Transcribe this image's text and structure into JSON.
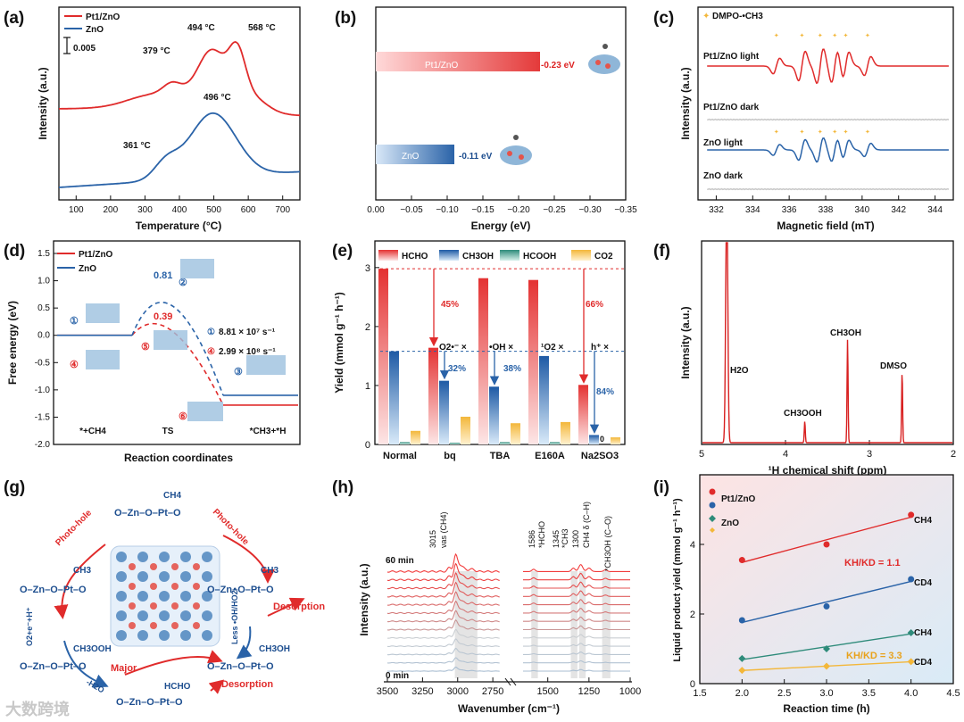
{
  "colors": {
    "pt": "#e02b2b",
    "zno": "#2a63a8",
    "teal": "#2e8b7a",
    "yellow": "#f3b73a",
    "gray": "#c9c9c9"
  },
  "watermark": "大数跨境",
  "panels": {
    "a": {
      "label": "(a)",
      "xlabel": "Temperature (°C)",
      "ylabel": "Intensity (a.u.)",
      "legend": [
        "Pt1/ZnO",
        "ZnO"
      ],
      "scalebar": "0.005",
      "annotations": [
        "379 °C",
        "494 °C",
        "568 °C",
        "361 °C",
        "496 °C"
      ]
    },
    "b": {
      "label": "(b)",
      "xlabel": "Energy (eV)",
      "bar_labels": [
        "Pt1/ZnO",
        "ZnO"
      ],
      "value_labels": [
        "-0.23 eV",
        "-0.11 eV"
      ]
    },
    "c": {
      "label": "(c)",
      "xlabel": "Magnetic field (mT)",
      "ylabel": "Intensity (a.u.)",
      "legend": "DMPO-•CH3",
      "trace_labels": [
        "Pt1/ZnO light",
        "Pt1/ZnO dark",
        "ZnO light",
        "ZnO dark"
      ]
    },
    "d": {
      "label": "(d)",
      "xlabel": "Reaction coordinates",
      "ylabel": "Free energy (eV)",
      "legend": [
        "Pt1/ZnO",
        "ZnO"
      ],
      "stage_labels": [
        "*+CH4",
        "TS",
        "*CH3+*H"
      ],
      "ts_labels": [
        "0.81",
        "0.39"
      ],
      "rates": [
        "8.81 × 10⁷ s⁻¹",
        "2.99 × 10⁸ s⁻¹"
      ],
      "markers": [
        "①",
        "②",
        "③",
        "④",
        "⑤",
        "⑥"
      ]
    },
    "e": {
      "label": "(e)",
      "ylabel": "Yield (mmol g⁻¹ h⁻¹)",
      "legend": [
        "HCHO",
        "CH3OH",
        "HCOOH",
        "CO2"
      ],
      "percent_labels": [
        "45%",
        "66%",
        "32%",
        "38%",
        "84%"
      ],
      "scavenger_labels": [
        "O2•⁻ ×",
        "•OH ×",
        "¹O2 ×",
        "h⁺ ×"
      ],
      "zero_label": "0"
    },
    "f": {
      "label": "(f)",
      "xlabel": "¹H chemical shift (ppm)",
      "ylabel": "Intensity (a.u.)",
      "peak_labels": [
        "H2O",
        "CH3OOH",
        "CH3OH",
        "DMSO"
      ]
    },
    "g": {
      "label": "(g)",
      "nodes": [
        "O–Zn–O–Pt–O",
        "O–Zn–O–Pt–O",
        "O–Zn–O–Pt–O",
        "O–Zn–O–Pt–O",
        "O–Zn–O–Pt–O",
        "O–Zn–O–Pt–O"
      ],
      "groups": [
        "CH4",
        "CH3",
        "CH3",
        "CH3OOH",
        "CH3OH",
        "HCHO"
      ],
      "arrow_labels": [
        "Photo-hole",
        "Photo-hole",
        "O2+e⁻+H⁺",
        "Less •OH/HO2•",
        "Desorption",
        "Desorption",
        "Major",
        "-H2O"
      ]
    },
    "h": {
      "label": "(h)",
      "xlabel": "Wavenumber (cm⁻¹)",
      "ylabel": "Intensity (a.u.)",
      "time_labels": [
        "60 min",
        "0 min"
      ],
      "band_labels": [
        "3015",
        "νas (CH4)",
        "1586",
        "*HCHO",
        "1345",
        "*CH3",
        "1300",
        "CH4 δ (C–H)",
        "*CH3OH (C–O)"
      ]
    },
    "i": {
      "label": "(i)",
      "xlabel": "Reaction time (h)",
      "ylabel": "Liquid product yield (mmol g⁻¹ h⁻¹)",
      "legend": [
        "Pt1/ZnO",
        "ZnO"
      ],
      "line_labels": [
        "CH4",
        "CD4",
        "CH4",
        "CD4"
      ],
      "kie_labels": [
        "KH/KD = 1.1",
        "KH/KD = 3.3"
      ]
    }
  },
  "chart_data": [
    {
      "panel": "a",
      "type": "line",
      "xlabel": "Temperature (°C)",
      "ylabel": "Intensity (a.u.)",
      "xlim": [
        50,
        750
      ],
      "series": [
        {
          "name": "Pt1/ZnO",
          "peaks": [
            379,
            494,
            568
          ]
        },
        {
          "name": "ZnO",
          "peaks": [
            361,
            496
          ]
        }
      ],
      "xticks": [
        100,
        200,
        300,
        400,
        500,
        600,
        700
      ]
    },
    {
      "panel": "b",
      "type": "bar",
      "xlabel": "Energy (eV)",
      "categories": [
        "Pt1/ZnO",
        "ZnO"
      ],
      "values": [
        -0.23,
        -0.11
      ],
      "xlim": [
        0,
        -0.35
      ],
      "xticks": [
        "0.00",
        "−0.05",
        "−0.10",
        "−0.15",
        "−0.20",
        "−0.25",
        "−0.30",
        "−0.35"
      ]
    },
    {
      "panel": "c",
      "type": "line",
      "xlabel": "Magnetic field (mT)",
      "xlim": [
        331,
        345
      ],
      "xticks": [
        332,
        334,
        336,
        338,
        340,
        342,
        344
      ],
      "series": [
        {
          "name": "Pt1/ZnO light",
          "lines_mT": [
            335.3,
            336.7,
            337.7,
            338.5,
            339.1,
            340.3
          ]
        },
        {
          "name": "Pt1/ZnO dark",
          "lines_mT": []
        },
        {
          "name": "ZnO light",
          "lines_mT": [
            335.3,
            336.7,
            337.7,
            338.5,
            339.1,
            340.3
          ]
        },
        {
          "name": "ZnO dark",
          "lines_mT": []
        }
      ]
    },
    {
      "panel": "d",
      "type": "line",
      "xlabel": "Reaction coordinates",
      "ylabel": "Free energy (eV)",
      "ylim": [
        -2.0,
        1.5
      ],
      "yticks": [
        1.5,
        1.0,
        0.5,
        0.0,
        -0.5,
        -1.0,
        -1.5,
        -2.0
      ],
      "series": [
        {
          "name": "Pt1/ZnO",
          "values": [
            0.0,
            0.39,
            -1.28
          ]
        },
        {
          "name": "ZnO",
          "values": [
            0.0,
            0.81,
            -1.1
          ]
        }
      ],
      "categories": [
        "*+CH4",
        "TS",
        "*CH3+*H"
      ]
    },
    {
      "panel": "e",
      "type": "bar",
      "ylabel": "Yield (mmol g⁻¹ h⁻¹)",
      "ylim": [
        0,
        3.3
      ],
      "yticks": [
        0,
        1,
        2,
        3
      ],
      "categories": [
        "Normal",
        "bq",
        "TBA",
        "E160A",
        "Na2SO3"
      ],
      "series": [
        {
          "name": "HCHO",
          "values": [
            2.98,
            1.64,
            2.82,
            2.79,
            1.01
          ]
        },
        {
          "name": "CH3OH",
          "values": [
            1.58,
            1.08,
            0.98,
            1.5,
            0.16
          ]
        },
        {
          "name": "HCOOH",
          "values": [
            0.04,
            0.03,
            0.04,
            0.04,
            0.0
          ]
        },
        {
          "name": "CO2",
          "values": [
            0.23,
            0.47,
            0.36,
            0.38,
            0.12
          ]
        }
      ]
    },
    {
      "panel": "f",
      "type": "line",
      "xlabel": "¹H chemical shift (ppm)",
      "xlim": [
        5,
        2
      ],
      "xticks": [
        5,
        4,
        3,
        2
      ],
      "peaks": [
        {
          "label": "H2O",
          "ppm": 4.7
        },
        {
          "label": "CH3OOH",
          "ppm": 3.77
        },
        {
          "label": "CH3OH",
          "ppm": 3.26
        },
        {
          "label": "DMSO",
          "ppm": 2.61
        }
      ]
    },
    {
      "panel": "h",
      "type": "line",
      "xlabel": "Wavenumber (cm⁻¹)",
      "times": [
        "0 min",
        "60 min"
      ],
      "xticks": [
        3500,
        3250,
        3000,
        2750,
        1500,
        1250,
        1000
      ],
      "bands": [
        3015,
        1586,
        1345,
        1300,
        1150
      ]
    },
    {
      "panel": "i",
      "type": "scatter",
      "xlabel": "Reaction time (h)",
      "ylabel": "Liquid product yield (mmol g⁻¹ h⁻¹)",
      "xlim": [
        1.5,
        4.5
      ],
      "ylim": [
        0,
        6
      ],
      "xticks": [
        1.5,
        2.0,
        2.5,
        3.0,
        3.5,
        4.0,
        4.5
      ],
      "yticks": [
        0,
        2,
        4
      ],
      "series": [
        {
          "name": "CH4",
          "x": [
            2,
            3,
            4
          ],
          "y": [
            3.55,
            4.0,
            4.85
          ]
        },
        {
          "name": "CD4",
          "x": [
            2,
            3,
            4
          ],
          "y": [
            1.82,
            2.22,
            3.0
          ]
        },
        {
          "name": "CH4",
          "x": [
            2,
            3,
            4
          ],
          "y": [
            0.72,
            1.0,
            1.46
          ]
        },
        {
          "name": "CD4",
          "x": [
            2,
            3,
            4
          ],
          "y": [
            0.38,
            0.5,
            0.63
          ]
        }
      ]
    }
  ]
}
